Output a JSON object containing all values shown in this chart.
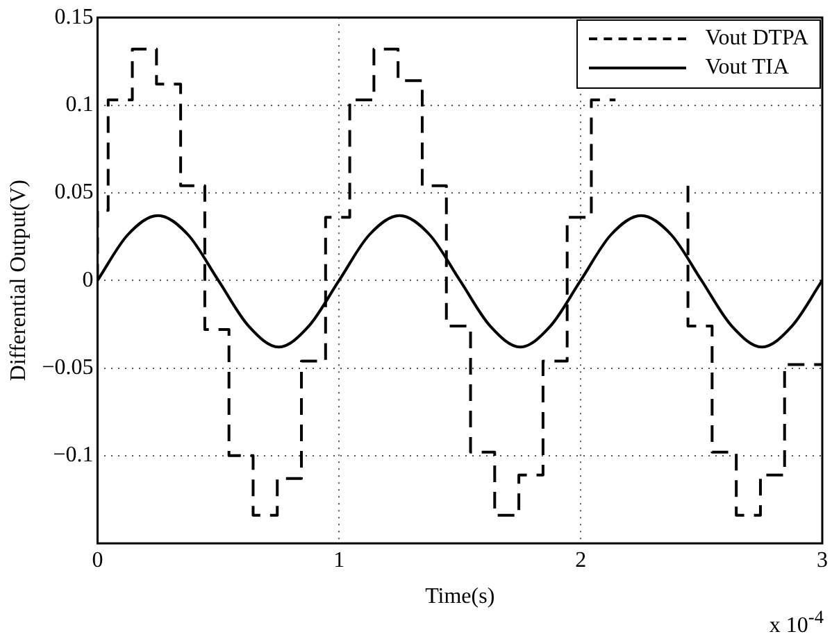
{
  "chart_data": {
    "type": "line",
    "xlabel": "Time(s)",
    "ylabel": "Differential Output(V)",
    "annotations": [
      "x 10$^{-4}$"
    ],
    "xlim": [
      0,
      3
    ],
    "xticks": [
      0,
      1,
      2,
      3
    ],
    "ylim": [
      -0.15,
      0.15
    ],
    "yticks": [
      -0.1,
      -0.05,
      0,
      0.05,
      0.1,
      0.15
    ],
    "grid": true,
    "legend": "top right",
    "marker": "none",
    "series": [
      {
        "name": "Vout DTPA",
        "type": "step",
        "color": "#000000",
        "line_style": "dashed",
        "x": [
          0,
          0.044,
          0.144,
          0.244,
          0.344,
          0.444,
          0.544,
          0.644,
          0.744,
          0.844,
          0.944,
          1.044,
          1.144,
          1.244,
          1.344,
          1.444,
          1.544,
          1.644,
          1.744,
          1.844,
          1.944,
          2.044,
          2.144,
          2.244,
          2.344,
          2.444,
          2.544,
          2.644,
          2.744,
          2.844,
          2.944,
          3
        ],
        "values": [
          0,
          0.04,
          0.103,
          0.132,
          0.112,
          0.054,
          -0.028,
          -0.1,
          -0.134,
          -0.113,
          -0.046,
          0.036,
          0.103,
          0.132,
          0.114,
          0.054,
          -0.026,
          -0.098,
          -0.134,
          -0.111,
          -0.046,
          0.036,
          0.103,
          null,
          null,
          0.054,
          -0.026,
          -0.098,
          -0.134,
          -0.111,
          -0.048,
          -0.048
        ]
      },
      {
        "name": "Vout TIA",
        "type": "line",
        "color": "#000000",
        "line_style": "solid",
        "x": [
          0,
          0.125,
          0.25,
          0.375,
          0.5,
          0.625,
          0.75,
          0.875,
          1,
          1.125,
          1.25,
          1.375,
          1.5,
          1.625,
          1.75,
          1.875,
          2,
          2.125,
          2.25,
          2.375,
          2.5,
          2.625,
          2.75,
          2.875,
          3
        ],
        "values": [
          0,
          0.026,
          0.037,
          0.026,
          0,
          -0.026,
          -0.038,
          -0.026,
          0,
          0.026,
          0.037,
          0.026,
          0,
          -0.026,
          -0.038,
          -0.026,
          0,
          0.026,
          0.037,
          0.026,
          0,
          -0.026,
          -0.038,
          -0.026,
          0
        ]
      }
    ]
  }
}
